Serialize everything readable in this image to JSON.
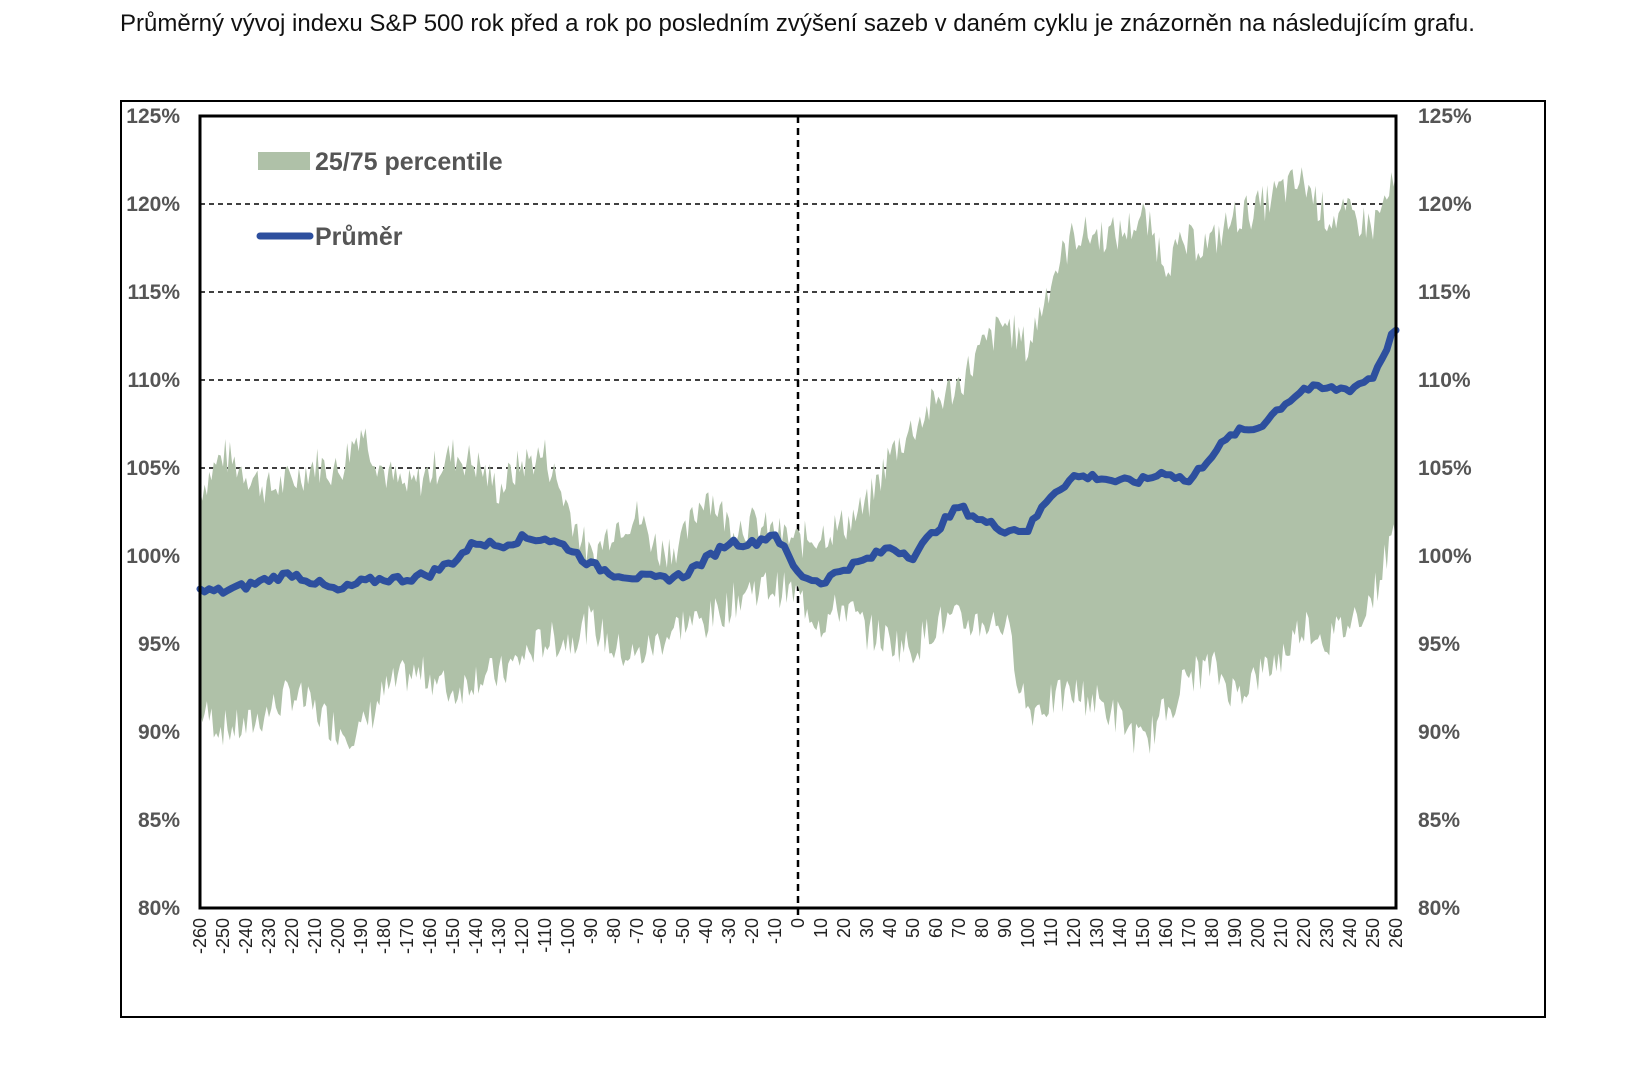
{
  "intro_text": "Průměrný vývoj indexu S&P 500 rok před a rok po posledním zvýšení sazeb v daném cyklu je znázorněn na následujícím grafu.",
  "chart_data": {
    "type": "area",
    "title": "",
    "xlabel": "",
    "ylabel": "",
    "xlim": [
      -260,
      260
    ],
    "ylim": [
      80,
      125
    ],
    "y_ticks": [
      "80%",
      "85%",
      "90%",
      "95%",
      "100%",
      "105%",
      "110%",
      "115%",
      "120%",
      "125%"
    ],
    "y_tick_values": [
      80,
      85,
      90,
      95,
      100,
      105,
      110,
      115,
      120,
      125
    ],
    "x_ticks": [
      "-260",
      "-250",
      "-240",
      "-230",
      "-220",
      "-210",
      "-200",
      "-190",
      "-180",
      "-170",
      "-160",
      "-150",
      "-140",
      "-130",
      "-120",
      "-110",
      "-100",
      "-90",
      "-80",
      "-70",
      "-60",
      "-50",
      "-40",
      "-30",
      "-20",
      "-10",
      "0",
      "10",
      "20",
      "30",
      "40",
      "50",
      "60",
      "70",
      "80",
      "90",
      "100",
      "110",
      "120",
      "130",
      "140",
      "150",
      "160",
      "170",
      "180",
      "190",
      "200",
      "210",
      "220",
      "230",
      "240",
      "250",
      "260"
    ],
    "gridlines": [
      105,
      110,
      115,
      120
    ],
    "vertical_marker_x": 0,
    "grid": true,
    "legend_position": "top-left",
    "series": [
      {
        "name": "25/75 percentile",
        "kind": "band",
        "color": "#afc1a8",
        "x": [
          -260,
          -250,
          -240,
          -230,
          -220,
          -210,
          -200,
          -190,
          -180,
          -170,
          -160,
          -150,
          -140,
          -130,
          -120,
          -110,
          -100,
          -90,
          -80,
          -70,
          -60,
          -50,
          -40,
          -30,
          -20,
          -10,
          0,
          10,
          20,
          30,
          40,
          50,
          60,
          70,
          80,
          90,
          100,
          110,
          120,
          130,
          140,
          150,
          160,
          170,
          180,
          190,
          200,
          210,
          220,
          230,
          240,
          250,
          260
        ],
        "lower": [
          91,
          90,
          90,
          91,
          92,
          91,
          90,
          89.8,
          92,
          93,
          93,
          92,
          93,
          93,
          94,
          95,
          95,
          96,
          94.5,
          94,
          95,
          96,
          96,
          97,
          98,
          98,
          97.5,
          96,
          97,
          95.5,
          95,
          94.5,
          96,
          96,
          96,
          96,
          91,
          91.5,
          92,
          91.5,
          90.5,
          89,
          91,
          93,
          93.5,
          92,
          93,
          94,
          96,
          95,
          96,
          97.5,
          101.5
        ],
        "upper": [
          104,
          106,
          105,
          104,
          104.5,
          105.5,
          105,
          107.5,
          105,
          104,
          105,
          106,
          105.5,
          104,
          105.5,
          106,
          103,
          100,
          102,
          102.5,
          100.5,
          101,
          104,
          102,
          102,
          101.5,
          101,
          101.5,
          102,
          103,
          106,
          107.5,
          109,
          110,
          112,
          113.5,
          112,
          116,
          118.5,
          118.5,
          118.5,
          119.5,
          117,
          118,
          118,
          119.5,
          120,
          121,
          121.5,
          119.5,
          119.5,
          119,
          121.5
        ]
      },
      {
        "name": "Průměr",
        "kind": "line",
        "color": "#2d4f9e",
        "x": [
          -260,
          -250,
          -240,
          -230,
          -220,
          -210,
          -200,
          -190,
          -180,
          -170,
          -160,
          -150,
          -140,
          -130,
          -120,
          -110,
          -100,
          -90,
          -80,
          -70,
          -60,
          -50,
          -40,
          -30,
          -20,
          -10,
          0,
          10,
          20,
          30,
          40,
          50,
          60,
          70,
          80,
          90,
          100,
          110,
          120,
          130,
          140,
          150,
          160,
          170,
          180,
          190,
          200,
          210,
          220,
          230,
          240,
          250,
          260
        ],
        "values": [
          98,
          98,
          98.3,
          98.7,
          99,
          98.5,
          98,
          98.5,
          98.7,
          98.7,
          99,
          99.7,
          100.8,
          100.6,
          101,
          101,
          100.5,
          99.5,
          99,
          98.8,
          98.7,
          98.9,
          99.8,
          100.8,
          100.7,
          101.3,
          99,
          98.5,
          99.3,
          99.8,
          100.5,
          100,
          101.5,
          102.8,
          102,
          101.5,
          101.5,
          103.5,
          104.5,
          104.5,
          104.2,
          104.3,
          104.8,
          104.2,
          105.8,
          107,
          107.3,
          108.5,
          109.5,
          109.5,
          109.5,
          110.2,
          113
        ]
      }
    ]
  },
  "colors": {
    "band": "#afc1a8",
    "line": "#2d4f9e",
    "tick_text": "#555555",
    "grid": "#000000"
  }
}
